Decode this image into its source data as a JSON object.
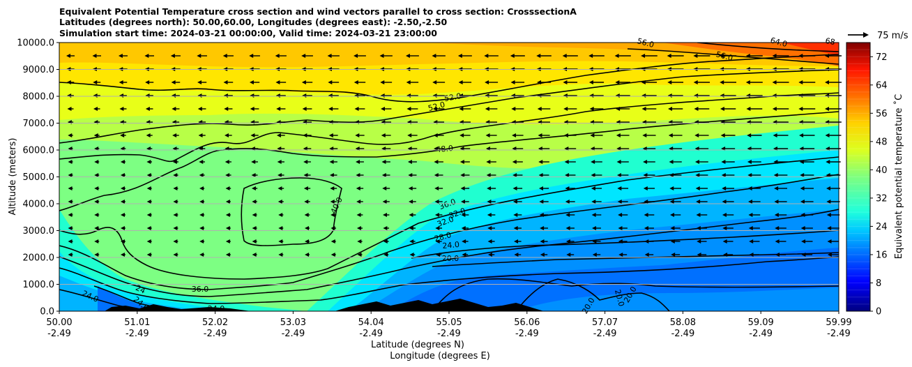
{
  "title_lines": [
    "Equivalent Potential Temperature cross section and wind vectors parallel to cross section: CrosssectionA",
    "Latitudes (degrees north): 50.00,60.00, Longitudes (degrees east): -2.50,-2.50",
    "Simulation start time: 2024-03-21 00:00:00, Valid time: 2024-03-21 23:00:00"
  ],
  "chart_data": {
    "type": "contourf_cross_section",
    "title": "Equivalent Potential Temperature cross section and wind vectors parallel to cross section: CrosssectionA",
    "xlabel_lat": "Latitude (degrees N)",
    "xlabel_lon": "Longitude (degrees E)",
    "ylabel": "Altitude (meters)",
    "x_range": [
      50.0,
      59.99
    ],
    "ylim": [
      0,
      10000
    ],
    "x_ticks_lat": [
      "50.00",
      "51.01",
      "52.02",
      "53.03",
      "54.04",
      "55.05",
      "56.06",
      "57.07",
      "58.08",
      "59.09",
      "59.99"
    ],
    "x_ticks_lon": [
      "-2.49",
      "-2.49",
      "-2.49",
      "-2.49",
      "-2.49",
      "-2.49",
      "-2.49",
      "-2.49",
      "-2.49",
      "-2.49",
      "-2.49"
    ],
    "y_ticks": [
      "0.0",
      "1000.0",
      "2000.0",
      "3000.0",
      "4000.0",
      "5000.0",
      "6000.0",
      "7000.0",
      "8000.0",
      "9000.0",
      "10000.0"
    ],
    "grid": "horizontal",
    "colorbar": {
      "label": "Equivalent potential temperature ˚C",
      "min": 0,
      "max": 76,
      "ticks": [
        "0",
        "8",
        "16",
        "24",
        "32",
        "40",
        "48",
        "56",
        "64",
        "72"
      ]
    },
    "quiver_key": {
      "label": "75 m/s"
    },
    "contour_labels": [
      "24.0",
      "24",
      "24.0",
      "24.0",
      "36.0",
      "40.0",
      "36.0",
      "32.0",
      "32.0",
      "28.0",
      "24.0",
      "20.0",
      "48.0",
      "52.0",
      "52.0",
      "56.0",
      "56.0",
      "64.0",
      "68",
      "20.0",
      "20.0",
      "20.0"
    ]
  }
}
